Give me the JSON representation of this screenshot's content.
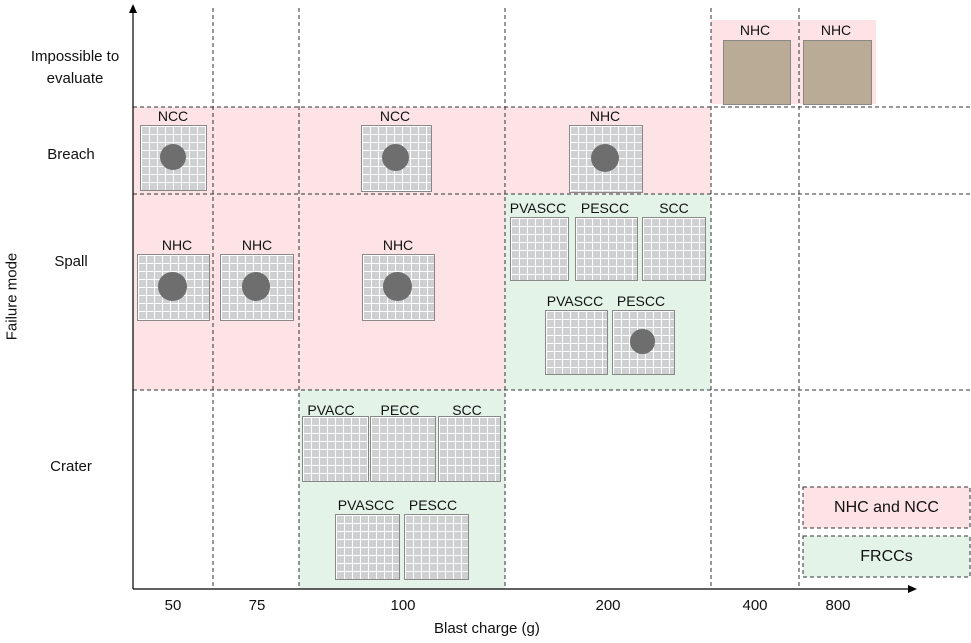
{
  "x_axis": {
    "title": "Blast charge (g)",
    "ticks": [
      "50",
      "75",
      "100",
      "200",
      "400",
      "800"
    ]
  },
  "y_axis": {
    "title": "Failure mode",
    "ticks": [
      "Impossible to evaluate",
      "Breach",
      "Spall",
      "Crater"
    ]
  },
  "specimens": [
    {
      "label": "NHC"
    },
    {
      "label": "NHC"
    },
    {
      "label": "NCC"
    },
    {
      "label": "NCC"
    },
    {
      "label": "NHC"
    },
    {
      "label": "NHC"
    },
    {
      "label": "NHC"
    },
    {
      "label": "NHC"
    },
    {
      "label": "PVASCC"
    },
    {
      "label": "PESCC"
    },
    {
      "label": "SCC"
    },
    {
      "label": "PVASCC"
    },
    {
      "label": "PESCC"
    },
    {
      "label": "PVACC"
    },
    {
      "label": "PECC"
    },
    {
      "label": "SCC"
    },
    {
      "label": "PVASCC"
    },
    {
      "label": "PESCC"
    }
  ],
  "legend": [
    {
      "label": "NHC and NCC"
    },
    {
      "label": "FRCCs"
    }
  ]
}
